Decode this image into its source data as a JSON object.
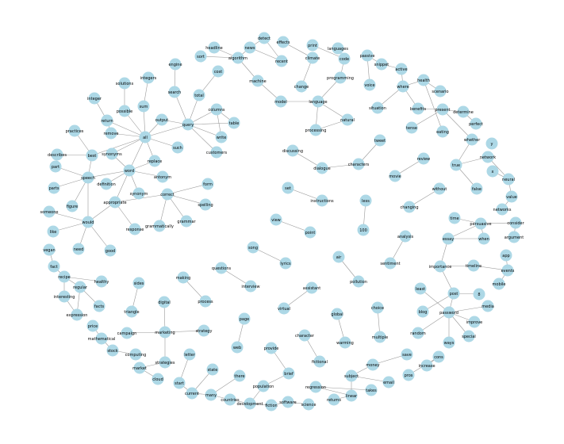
{
  "diagram": {
    "type": "network",
    "node_color": "#add8e6",
    "edge_color": "#9a9a9a",
    "nodes": [
      "headline",
      "news",
      "detect",
      "effects",
      "print",
      "languages",
      "sort",
      "algorithm",
      "recent",
      "climate",
      "code",
      "passive",
      "snippet",
      "engine",
      "machine",
      "active",
      "cost",
      "change",
      "programming",
      "voice",
      "where",
      "health",
      "solutions",
      "integers",
      "total",
      "model",
      "language",
      "scenario",
      "search",
      "sum",
      "columns",
      "situation",
      "benefits",
      "present",
      "determine",
      "integer",
      "return",
      "possible",
      "output",
      "table",
      "natural",
      "perfect",
      "practices",
      "remove",
      "all",
      "query",
      "write",
      "processing",
      "tense",
      "eating",
      "whether",
      "tweet",
      "such",
      "customers",
      "describes",
      "best",
      "synonyms",
      "discussing",
      "y",
      "characters",
      "replace",
      "part",
      "word",
      "dialogue",
      "network",
      "true",
      "review",
      "speech",
      "antonym",
      "form",
      "x",
      "neural",
      "movie",
      "definition",
      "parts",
      "figure",
      "correct",
      "set",
      "without",
      "false",
      "synonym",
      "appropriate",
      "spelling",
      "value",
      "instructions",
      "less",
      "changing",
      "networks",
      "someone",
      "grammar",
      "time",
      "persuasive",
      "consider",
      "would",
      "view",
      "like",
      "response",
      "grammatically",
      "point",
      "100",
      "analysis",
      "when",
      "essay",
      "argument",
      "need",
      "good",
      "vegan",
      "song",
      "app",
      "lyrics",
      "air",
      "sentiment",
      "fact",
      "importance",
      "timeline",
      "questions",
      "events",
      "recipe",
      "making",
      "healthy",
      "sides",
      "interview",
      "pollution",
      "mobile",
      "regular",
      "interesting",
      "facts",
      "process",
      "assistant",
      "post",
      "8",
      "least",
      "digital",
      "media",
      "triangle",
      "expression",
      "virtual",
      "blog",
      "password",
      "choice",
      "page",
      "global",
      "improve",
      "price",
      "strategy",
      "random",
      "campaign",
      "marketing",
      "mathematical",
      "character",
      "special",
      "multiple",
      "web",
      "warming",
      "ways",
      "stock",
      "provide",
      "computing",
      "letter",
      "save",
      "cons",
      "money",
      "strategies",
      "market",
      "fictional",
      "increase",
      "state",
      "there",
      "brief",
      "pros",
      "subject",
      "email",
      "cloud",
      "start",
      "current",
      "many",
      "population",
      "regression",
      "takes",
      "countries",
      "development",
      "fiction",
      "software",
      "science",
      "linear",
      "returns"
    ],
    "edges": [
      [
        "headline",
        "algorithm"
      ],
      [
        "news",
        "algorithm"
      ],
      [
        "news",
        "detect"
      ],
      [
        "news",
        "recent"
      ],
      [
        "detect",
        "recent"
      ],
      [
        "effects",
        "climate"
      ],
      [
        "print",
        "code"
      ],
      [
        "languages",
        "code"
      ],
      [
        "sort",
        "algorithm"
      ],
      [
        "algorithm",
        "machine"
      ],
      [
        "climate",
        "change"
      ],
      [
        "code",
        "programming"
      ],
      [
        "passive",
        "snippet"
      ],
      [
        "passive",
        "voice"
      ],
      [
        "snippet",
        "active"
      ],
      [
        "active",
        "where"
      ],
      [
        "engine",
        "search"
      ],
      [
        "machine",
        "model"
      ],
      [
        "cost",
        "total"
      ],
      [
        "total",
        "query"
      ],
      [
        "model",
        "language"
      ],
      [
        "language",
        "programming"
      ],
      [
        "language",
        "processing"
      ],
      [
        "language",
        "natural"
      ],
      [
        "natural",
        "processing"
      ],
      [
        "where",
        "health"
      ],
      [
        "where",
        "situation"
      ],
      [
        "where",
        "benefits"
      ],
      [
        "health",
        "scenario"
      ],
      [
        "health",
        "eating"
      ],
      [
        "benefits",
        "present"
      ],
      [
        "present",
        "determine"
      ],
      [
        "present",
        "tense"
      ],
      [
        "determine",
        "perfect"
      ],
      [
        "solutions",
        "possible"
      ],
      [
        "integers",
        "sum"
      ],
      [
        "search",
        "query"
      ],
      [
        "sum",
        "all"
      ],
      [
        "columns",
        "query"
      ],
      [
        "columns",
        "table"
      ],
      [
        "columns",
        "write"
      ],
      [
        "query",
        "all"
      ],
      [
        "query",
        "write"
      ],
      [
        "query",
        "customers"
      ],
      [
        "query",
        "table"
      ],
      [
        "query",
        "output"
      ],
      [
        "integer",
        "return"
      ],
      [
        "return",
        "all"
      ],
      [
        "return",
        "remove"
      ],
      [
        "possible",
        "all"
      ],
      [
        "output",
        "all"
      ],
      [
        "practices",
        "best"
      ],
      [
        "remove",
        "all"
      ],
      [
        "all",
        "synonyms"
      ],
      [
        "all",
        "word"
      ],
      [
        "all",
        "such"
      ],
      [
        "all",
        "replace"
      ],
      [
        "all",
        "best"
      ],
      [
        "whether",
        "true"
      ],
      [
        "whether",
        "present"
      ],
      [
        "tweet",
        "characters"
      ],
      [
        "describes",
        "best"
      ],
      [
        "best",
        "speech"
      ],
      [
        "synonyms",
        "word"
      ],
      [
        "discussing",
        "dialogue"
      ],
      [
        "characters",
        "dialogue"
      ],
      [
        "replace",
        "word"
      ],
      [
        "part",
        "speech"
      ],
      [
        "word",
        "speech"
      ],
      [
        "word",
        "antonym"
      ],
      [
        "word",
        "definition"
      ],
      [
        "word",
        "synonym"
      ],
      [
        "word",
        "appropriate"
      ],
      [
        "network",
        "neural"
      ],
      [
        "network",
        "true"
      ],
      [
        "true",
        "false"
      ],
      [
        "review",
        "movie"
      ],
      [
        "speech",
        "parts"
      ],
      [
        "speech",
        "figure"
      ],
      [
        "speech",
        "would"
      ],
      [
        "form",
        "correct"
      ],
      [
        "x",
        "neural"
      ],
      [
        "neural",
        "value"
      ],
      [
        "correct",
        "spelling"
      ],
      [
        "correct",
        "grammar"
      ],
      [
        "correct",
        "grammatically"
      ],
      [
        "correct",
        "appropriate"
      ],
      [
        "set",
        "instructions"
      ],
      [
        "without",
        "changing"
      ],
      [
        "appropriate",
        "would"
      ],
      [
        "appropriate",
        "response"
      ],
      [
        "value",
        "networks"
      ],
      [
        "less",
        "100"
      ],
      [
        "someone",
        "would"
      ],
      [
        "time",
        "persuasive"
      ],
      [
        "persuasive",
        "consider"
      ],
      [
        "persuasive",
        "essay"
      ],
      [
        "persuasive",
        "when"
      ],
      [
        "consider",
        "argument"
      ],
      [
        "would",
        "like"
      ],
      [
        "would",
        "need"
      ],
      [
        "would",
        "good"
      ],
      [
        "view",
        "point"
      ],
      [
        "analysis",
        "sentiment"
      ],
      [
        "when",
        "essay"
      ],
      [
        "essay",
        "importance"
      ],
      [
        "vegan",
        "fact"
      ],
      [
        "song",
        "lyrics"
      ],
      [
        "app",
        "events"
      ],
      [
        "air",
        "pollution"
      ],
      [
        "fact",
        "recipe"
      ],
      [
        "importance",
        "timeline"
      ],
      [
        "importance",
        "post"
      ],
      [
        "timeline",
        "events"
      ],
      [
        "questions",
        "interview"
      ],
      [
        "events",
        "mobile"
      ],
      [
        "recipe",
        "healthy"
      ],
      [
        "recipe",
        "regular"
      ],
      [
        "recipe",
        "interesting"
      ],
      [
        "making",
        "process"
      ],
      [
        "regular",
        "facts"
      ],
      [
        "regular",
        "expression"
      ],
      [
        "interesting",
        "expression"
      ],
      [
        "sides",
        "triangle"
      ],
      [
        "assistant",
        "virtual"
      ],
      [
        "post",
        "blog"
      ],
      [
        "post",
        "8"
      ],
      [
        "post",
        "password"
      ],
      [
        "least",
        "password"
      ],
      [
        "digital",
        "marketing"
      ],
      [
        "media",
        "password"
      ],
      [
        "password",
        "improve"
      ],
      [
        "password",
        "random"
      ],
      [
        "password",
        "special"
      ],
      [
        "password",
        "ways"
      ],
      [
        "choice",
        "multiple"
      ],
      [
        "page",
        "web"
      ],
      [
        "global",
        "warming"
      ],
      [
        "price",
        "mathematical"
      ],
      [
        "strategy",
        "marketing"
      ],
      [
        "campaign",
        "marketing"
      ],
      [
        "marketing",
        "strategies"
      ],
      [
        "mathematical",
        "stock"
      ],
      [
        "character",
        "fictional"
      ],
      [
        "stock",
        "computing"
      ],
      [
        "provide",
        "brief"
      ],
      [
        "letter",
        "start"
      ],
      [
        "save",
        "money"
      ],
      [
        "cons",
        "increase"
      ],
      [
        "cons",
        "pros"
      ],
      [
        "money",
        "subject"
      ],
      [
        "strategies",
        "market"
      ],
      [
        "market",
        "cloud"
      ],
      [
        "state",
        "current"
      ],
      [
        "there",
        "many"
      ],
      [
        "brief",
        "population"
      ],
      [
        "subject",
        "email"
      ],
      [
        "subject",
        "linear"
      ],
      [
        "start",
        "current"
      ],
      [
        "current",
        "many"
      ],
      [
        "many",
        "countries"
      ],
      [
        "population",
        "development"
      ],
      [
        "regression",
        "takes"
      ],
      [
        "regression",
        "linear"
      ],
      [
        "countries",
        "development"
      ],
      [
        "fiction",
        "software"
      ],
      [
        "software",
        "science"
      ],
      [
        "linear",
        "returns"
      ],
      [
        "development",
        "fiction"
      ]
    ]
  }
}
